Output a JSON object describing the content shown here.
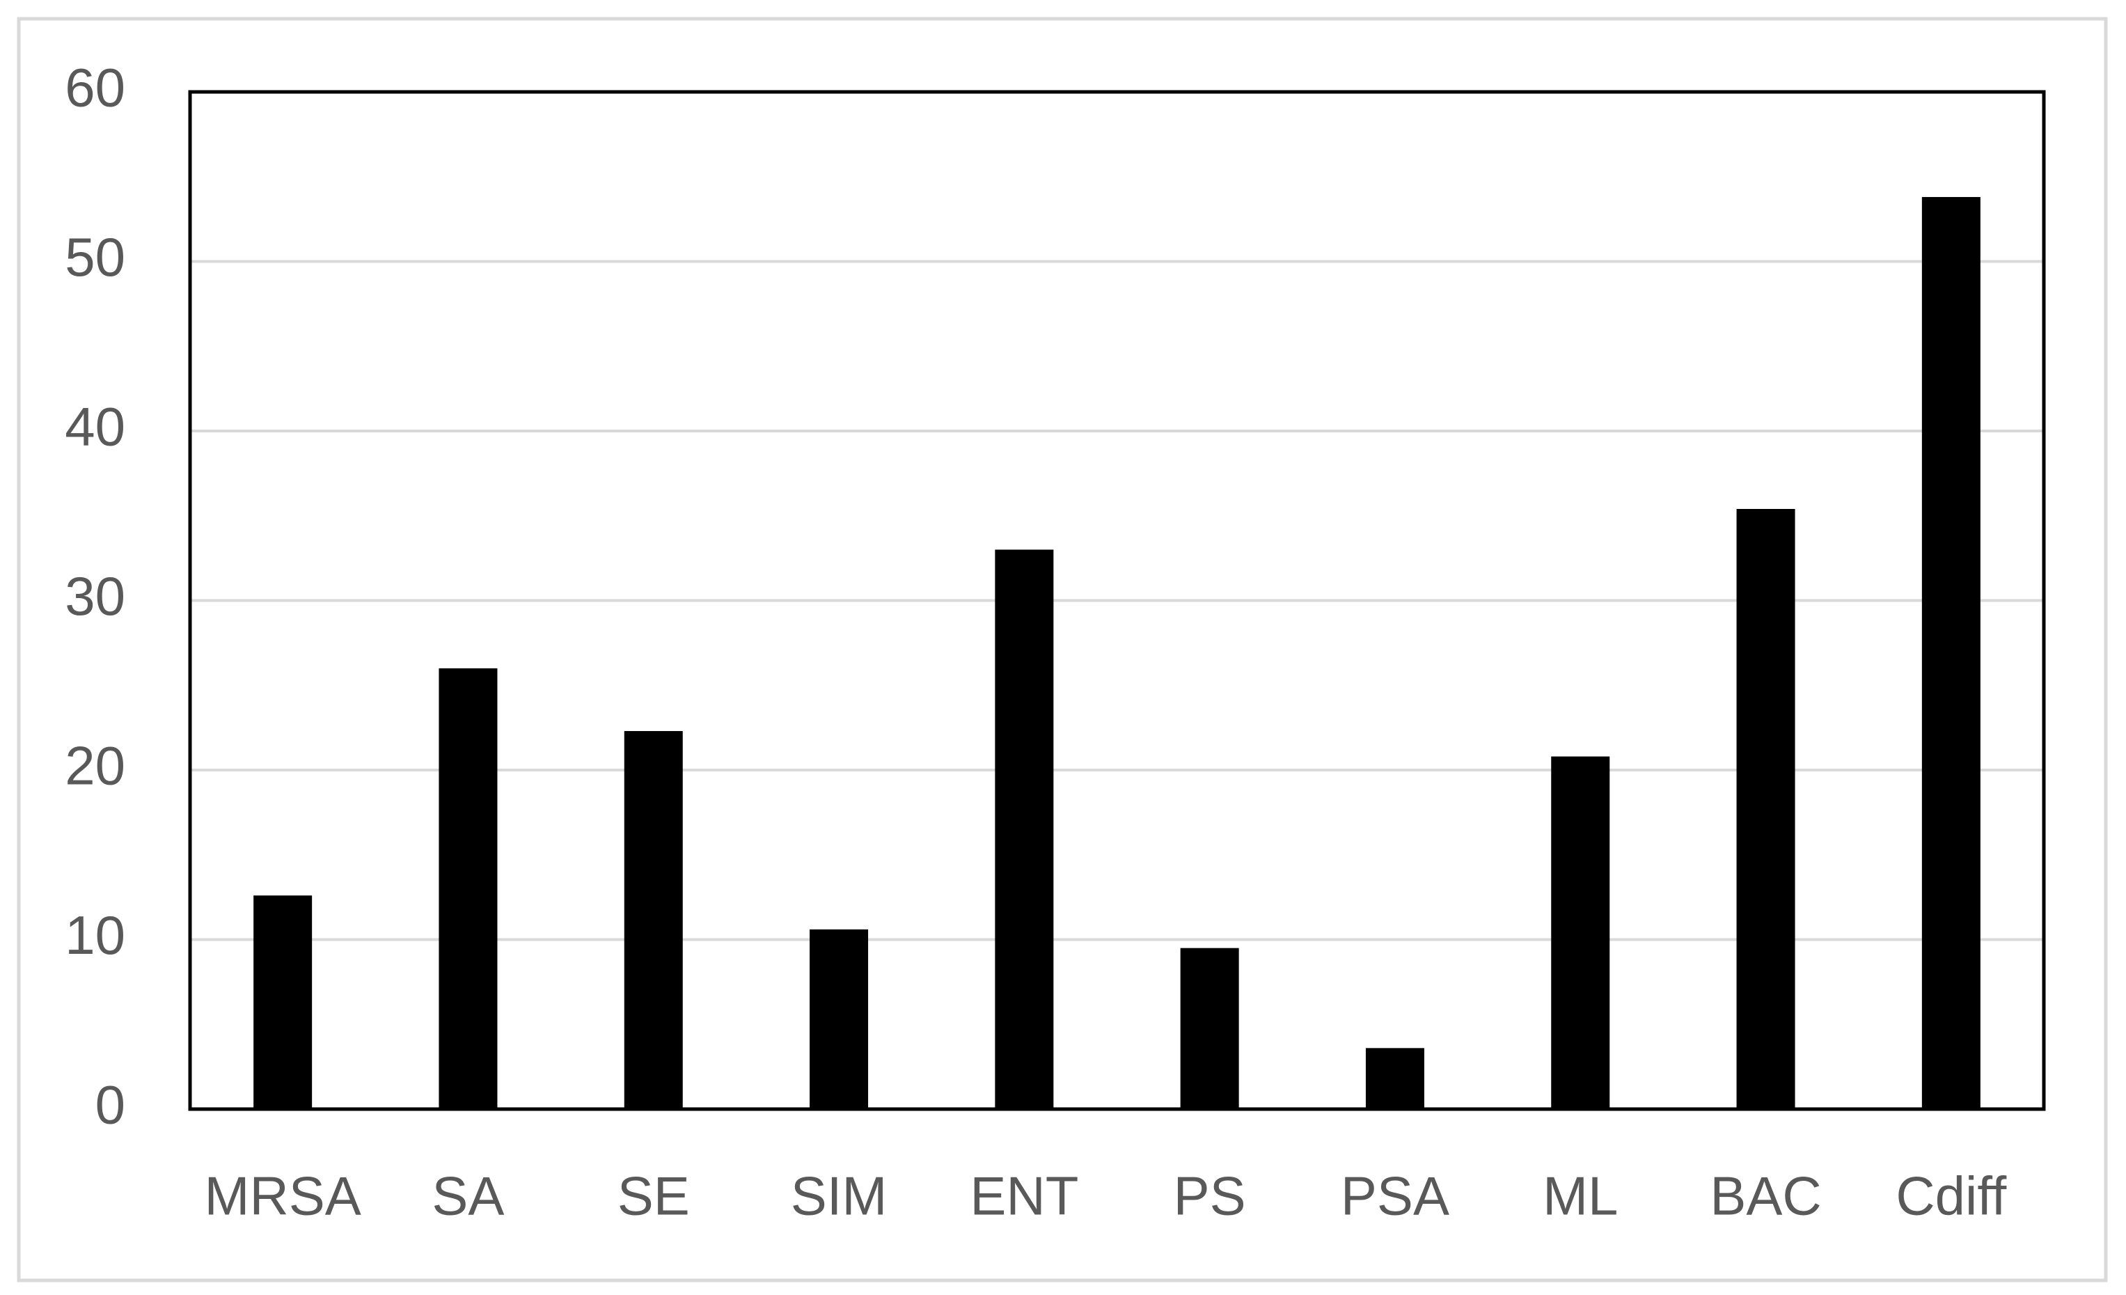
{
  "chart_data": {
    "type": "bar",
    "categories": [
      "MRSA",
      "SA",
      "SE",
      "SIM",
      "ENT",
      "PS",
      "PSA",
      "ML",
      "BAC",
      "Cdiff"
    ],
    "values": [
      12.6,
      26.0,
      22.3,
      10.6,
      33.0,
      9.5,
      3.6,
      20.8,
      35.4,
      53.8
    ],
    "color": "#000000",
    "ylim": [
      0,
      60
    ],
    "yticks": [
      0,
      10,
      20,
      30,
      40,
      50,
      60
    ],
    "grid": true
  }
}
